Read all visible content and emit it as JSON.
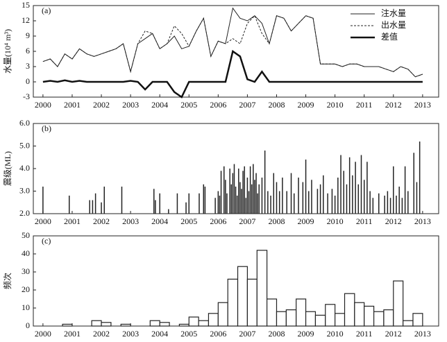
{
  "chart_data": [
    {
      "type": "line",
      "label": "(a)",
      "ylabel": "水量(10⁴ m³)",
      "xlim": [
        1999.67,
        2013.55
      ],
      "xticks": [
        2000,
        2001,
        2002,
        2003,
        2004,
        2005,
        2006,
        2007,
        2008,
        2009,
        2010,
        2011,
        2012,
        2013
      ],
      "ylim": [
        -3,
        15
      ],
      "yticks": [
        -3,
        0,
        3,
        6,
        9,
        12,
        15
      ],
      "legend": "upper right",
      "x": [
        2000,
        2000.25,
        2000.5,
        2000.75,
        2001,
        2001.25,
        2001.5,
        2001.75,
        2002,
        2002.25,
        2002.5,
        2002.75,
        2003,
        2003.25,
        2003.5,
        2003.75,
        2004,
        2004.25,
        2004.5,
        2004.75,
        2005,
        2005.25,
        2005.5,
        2005.75,
        2006,
        2006.25,
        2006.5,
        2006.75,
        2007,
        2007.25,
        2007.5,
        2007.75,
        2008,
        2008.25,
        2008.5,
        2008.75,
        2009,
        2009.25,
        2009.5,
        2009.75,
        2010,
        2010.25,
        2010.5,
        2010.75,
        2011,
        2011.25,
        2011.5,
        2011.75,
        2012,
        2012.25,
        2012.5,
        2012.75,
        2013
      ],
      "series": [
        {
          "name": "注水量",
          "color": "#222",
          "style": "solid",
          "values": [
            4,
            4.5,
            3,
            5.5,
            4.5,
            6.5,
            5.5,
            5,
            5.5,
            6,
            6.5,
            7.5,
            2,
            7.5,
            8.5,
            9.5,
            6.5,
            7.5,
            9,
            6.5,
            7,
            10,
            12.5,
            5,
            8,
            7.5,
            14.5,
            12.5,
            12,
            13,
            11.5,
            7.5,
            13,
            12.5,
            10,
            11.5,
            13,
            12.5,
            3.5,
            3.5,
            3.5,
            3,
            3.5,
            3.5,
            3,
            3,
            3,
            2.5,
            2,
            3,
            2.5,
            1,
            1.5
          ]
        },
        {
          "name": "出水量",
          "color": "#222",
          "style": "dashed",
          "values": [
            4,
            4.5,
            3,
            5.5,
            4.5,
            6.5,
            5.5,
            5,
            5.5,
            6,
            6.5,
            7.5,
            2,
            7.5,
            10,
            9.5,
            6.5,
            7.5,
            11,
            9.5,
            7,
            10,
            12.5,
            5,
            8,
            7.5,
            8.5,
            7.5,
            11.5,
            13,
            9.5,
            7.5,
            13,
            12.5,
            10,
            11.5,
            13,
            12.5,
            3.5,
            3.5,
            3.5,
            3,
            3.5,
            3.5,
            3,
            3,
            3,
            2.5,
            2,
            3,
            2.5,
            1,
            1.5
          ]
        },
        {
          "name": "差值",
          "color": "#111",
          "style": "bold",
          "values": [
            0,
            0.2,
            0,
            0.3,
            0,
            0.2,
            0,
            0,
            0,
            0,
            0,
            0,
            0.2,
            0,
            -1.5,
            0,
            0,
            0,
            -2,
            -3,
            0,
            0,
            0,
            0,
            0,
            0,
            6,
            5,
            0.5,
            0,
            2,
            0,
            0,
            0,
            0,
            0,
            0,
            0,
            0,
            0,
            0,
            0,
            0,
            0,
            0,
            0,
            0,
            0,
            0,
            0,
            0,
            0,
            0
          ]
        }
      ]
    },
    {
      "type": "stem",
      "label": "(b)",
      "ylabel": "震级(ML)",
      "xlim": [
        1999.67,
        2013.55
      ],
      "xticks": [
        2000,
        2001,
        2002,
        2003,
        2004,
        2005,
        2006,
        2007,
        2008,
        2009,
        2010,
        2011,
        2012,
        2013
      ],
      "ylim": [
        2,
        6
      ],
      "yticks": [
        {
          "value": 2,
          "label": "2.0"
        },
        {
          "value": 3,
          "label": "3.0"
        },
        {
          "value": 4,
          "label": "4.0"
        },
        {
          "value": 5,
          "label": "5.0"
        },
        {
          "value": 6,
          "label": "6.0"
        }
      ],
      "color": "#222",
      "x": [
        2000,
        2000.9,
        2001.6,
        2001.7,
        2001.8,
        2002,
        2002.1,
        2002.7,
        2003.8,
        2003.85,
        2004,
        2004.3,
        2004.6,
        2004.9,
        2005,
        2005.35,
        2005.5,
        2005.55,
        2005.9,
        2006,
        2006.05,
        2006.1,
        2006.2,
        2006.25,
        2006.3,
        2006.4,
        2006.45,
        2006.5,
        2006.55,
        2006.6,
        2006.65,
        2006.7,
        2006.75,
        2006.8,
        2006.85,
        2006.9,
        2006.95,
        2007,
        2007.05,
        2007.1,
        2007.15,
        2007.2,
        2007.25,
        2007.3,
        2007.35,
        2007.4,
        2007.5,
        2007.6,
        2007.7,
        2007.8,
        2007.9,
        2008,
        2008.1,
        2008.2,
        2008.35,
        2008.5,
        2008.6,
        2008.75,
        2008.9,
        2009,
        2009.1,
        2009.2,
        2009.4,
        2009.5,
        2009.6,
        2009.75,
        2009.9,
        2010,
        2010.1,
        2010.2,
        2010.3,
        2010.4,
        2010.5,
        2010.6,
        2010.7,
        2010.8,
        2010.9,
        2011,
        2011.1,
        2011.2,
        2011.3,
        2011.5,
        2011.7,
        2011.8,
        2011.9,
        2012,
        2012.1,
        2012.2,
        2012.3,
        2012.4,
        2012.5,
        2012.7,
        2012.8,
        2012.9
      ],
      "values": [
        3.2,
        2.8,
        2.6,
        2.6,
        2.9,
        2.5,
        3.2,
        3.2,
        3.1,
        2.6,
        2.9,
        2.2,
        2.9,
        2.5,
        2.9,
        2.9,
        3.3,
        3.2,
        2.7,
        3.0,
        2.8,
        3.9,
        4.1,
        3.5,
        2.9,
        4.0,
        3.3,
        3.8,
        4.2,
        3.2,
        2.8,
        4.0,
        3.4,
        3.1,
        3.9,
        4.1,
        2.7,
        3.6,
        3.0,
        4.1,
        3.3,
        4.2,
        3.5,
        3.8,
        2.9,
        3.3,
        3.6,
        4.8,
        3.0,
        2.8,
        3.8,
        3.4,
        3.0,
        3.6,
        3.0,
        3.8,
        2.9,
        3.6,
        3.4,
        4.4,
        3.0,
        3.5,
        3.1,
        3.3,
        3.7,
        2.9,
        3.1,
        2.8,
        3.6,
        4.6,
        3.9,
        3.3,
        4.5,
        3.7,
        4.3,
        3.3,
        4.6,
        3.5,
        4.3,
        3.0,
        2.7,
        2.9,
        2.8,
        3.0,
        2.7,
        4.1,
        2.8,
        3.2,
        2.7,
        4.1,
        3.0,
        4.7,
        3.4,
        5.2
      ]
    },
    {
      "type": "histogram",
      "label": "(c)",
      "ylabel": "频次",
      "xlim": [
        1999.67,
        2013.55
      ],
      "xticks": [
        2000,
        2001,
        2002,
        2003,
        2004,
        2005,
        2006,
        2007,
        2008,
        2009,
        2010,
        2011,
        2012,
        2013
      ],
      "ylim": [
        0,
        50
      ],
      "yticks": [
        0,
        10,
        20,
        30,
        40,
        50
      ],
      "color": "#fff",
      "bins": [
        2000,
        2000.33,
        2000.67,
        2001,
        2001.33,
        2001.67,
        2002,
        2002.33,
        2002.67,
        2003,
        2003.33,
        2003.67,
        2004,
        2004.33,
        2004.67,
        2005,
        2005.33,
        2005.67,
        2006,
        2006.33,
        2006.67,
        2007,
        2007.33,
        2007.67,
        2008,
        2008.33,
        2008.67,
        2009,
        2009.33,
        2009.67,
        2010,
        2010.33,
        2010.67,
        2011,
        2011.33,
        2011.67,
        2012,
        2012.33,
        2012.67,
        2013
      ],
      "values": [
        0,
        0,
        1,
        0,
        0,
        3,
        2,
        0,
        1,
        0,
        0,
        3,
        2,
        0,
        1,
        5,
        3,
        7,
        13,
        26,
        33,
        26,
        42,
        15,
        8,
        9,
        15,
        8,
        6,
        12,
        7,
        18,
        13,
        11,
        8,
        9,
        25,
        3,
        7
      ]
    }
  ]
}
